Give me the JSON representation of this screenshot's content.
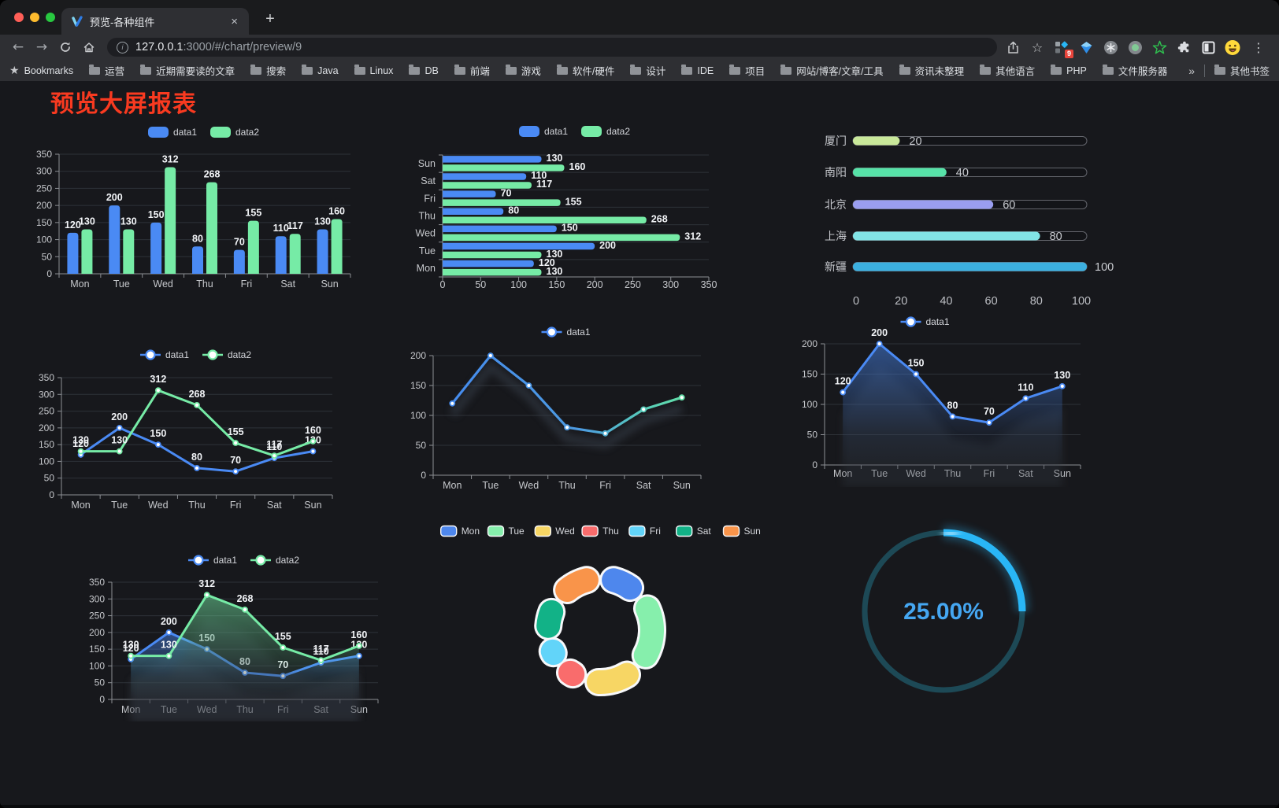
{
  "browser": {
    "traffic_lights": [
      "#FF5F57",
      "#FEBC2E",
      "#28C840"
    ],
    "tab_title": "预览-各种组件",
    "close_label": "×",
    "new_tab_label": "+",
    "nav_icons": [
      "back-arrow-icon",
      "forward-arrow-icon",
      "reload-icon",
      "home-icon"
    ],
    "url_host": "127.0.0.1",
    "url_path": ":3000/#/chart/preview/9",
    "action_icons": [
      "share-icon",
      "bookmark-star-icon"
    ],
    "extension_icons": [
      "grid-diamond-extension-icon",
      "gem-extension-icon",
      "asterisk-extension-icon",
      "recorder-extension-icon",
      "star-extension-icon",
      "puzzle-extensions-icon",
      "reader-mode-extension-icon",
      "profile-avatar"
    ],
    "extension_badge": "9",
    "menu_icon": "menu-dots-icon",
    "bookmarks_label": "Bookmarks",
    "bookmark_folders": [
      "运营",
      "近期需要读的文章",
      "搜索",
      "Java",
      "Linux",
      "DB",
      "前端",
      "游戏",
      "软件/硬件",
      "设计",
      "IDE",
      "项目",
      "网站/博客/文章/工具",
      "资讯未整理",
      "其他语言",
      "PHP",
      "文件服务器"
    ],
    "bookmarks_overflow": "»",
    "other_bookmarks": "其他书签"
  },
  "page": {
    "title": "预览大屏报表",
    "title_color": "#F93A20"
  },
  "chart_data": [
    {
      "id": "bar-grouped",
      "type": "bar",
      "categories": [
        "Mon",
        "Tue",
        "Wed",
        "Thu",
        "Fri",
        "Sat",
        "Sun"
      ],
      "series": [
        {
          "name": "data1",
          "color": "#4A8AF4",
          "values": [
            120,
            200,
            150,
            80,
            70,
            110,
            130
          ]
        },
        {
          "name": "data2",
          "color": "#76EBA6",
          "values": [
            130,
            130,
            312,
            268,
            155,
            117,
            160
          ]
        }
      ],
      "ylim": [
        0,
        350
      ],
      "ytick_step": 50,
      "grid": true,
      "labels": true,
      "legend_position": "top"
    },
    {
      "id": "bar-horizontal",
      "type": "bar-horizontal",
      "categories": [
        "Mon",
        "Tue",
        "Wed",
        "Thu",
        "Fri",
        "Sat",
        "Sun"
      ],
      "y_axis_order_top_to_bottom": [
        "Sun",
        "Sat",
        "Fri",
        "Thu",
        "Wed",
        "Tue",
        "Mon"
      ],
      "series": [
        {
          "name": "data1",
          "color": "#4A8AF4",
          "values": [
            120,
            200,
            150,
            80,
            70,
            110,
            130
          ]
        },
        {
          "name": "data2",
          "color": "#76EBA6",
          "values": [
            130,
            130,
            312,
            268,
            155,
            117,
            160
          ]
        }
      ],
      "xlim": [
        0,
        350
      ],
      "xtick_step": 50,
      "grid": true,
      "labels": true,
      "legend_position": "top"
    },
    {
      "id": "progress-bars",
      "type": "progress",
      "rows": [
        {
          "label": "厦门",
          "value": 20,
          "color": "#C9E89A"
        },
        {
          "label": "南阳",
          "value": 40,
          "color": "#57E2A8"
        },
        {
          "label": "北京",
          "value": 60,
          "color": "#9A9EF0"
        },
        {
          "label": "上海",
          "value": 80,
          "color": "#82E4E6"
        },
        {
          "label": "新疆",
          "value": 100,
          "color": "#3CB0E0"
        }
      ],
      "xlim": [
        0,
        100
      ],
      "xticks": [
        0,
        20,
        40,
        60,
        80,
        100
      ]
    },
    {
      "id": "line-multi",
      "type": "line",
      "categories": [
        "Mon",
        "Tue",
        "Wed",
        "Thu",
        "Fri",
        "Sat",
        "Sun"
      ],
      "series": [
        {
          "name": "data1",
          "color": "#4A8AF4",
          "values": [
            120,
            200,
            150,
            80,
            70,
            110,
            130
          ]
        },
        {
          "name": "data2",
          "color": "#76EBA6",
          "values": [
            130,
            130,
            312,
            268,
            155,
            117,
            160
          ]
        }
      ],
      "ylim": [
        0,
        350
      ],
      "ytick_step": 50,
      "grid": true,
      "labels": true,
      "legend_position": "top"
    },
    {
      "id": "line-gradient",
      "type": "line-gradient",
      "categories": [
        "Mon",
        "Tue",
        "Wed",
        "Thu",
        "Fri",
        "Sat",
        "Sun"
      ],
      "series": [
        {
          "name": "data1",
          "gradient": [
            "#4489F0",
            "#4D9BE0",
            "#57CBBB",
            "#66E69E"
          ],
          "values": [
            120,
            200,
            150,
            80,
            70,
            110,
            130
          ]
        }
      ],
      "ylim": [
        0,
        200
      ],
      "ytick_step": 50,
      "grid": true,
      "labels": false,
      "legend_position": "top"
    },
    {
      "id": "area-single",
      "type": "line-area",
      "categories": [
        "Mon",
        "Tue",
        "Wed",
        "Thu",
        "Fri",
        "Sat",
        "Sun"
      ],
      "series": [
        {
          "name": "data1",
          "color": "#4A8AF4",
          "values": [
            120,
            200,
            150,
            80,
            70,
            110,
            130
          ]
        }
      ],
      "ylim": [
        0,
        200
      ],
      "ytick_step": 50,
      "grid": true,
      "labels": true,
      "legend_position": "top"
    },
    {
      "id": "area-multi",
      "type": "line-area",
      "categories": [
        "Mon",
        "Tue",
        "Wed",
        "Thu",
        "Fri",
        "Sat",
        "Sun"
      ],
      "series": [
        {
          "name": "data1",
          "color": "#4A8AF4",
          "values": [
            120,
            200,
            150,
            80,
            70,
            110,
            130
          ]
        },
        {
          "name": "data2",
          "color": "#76EBA6",
          "values": [
            130,
            130,
            312,
            268,
            155,
            117,
            160
          ]
        }
      ],
      "ylim": [
        0,
        350
      ],
      "ytick_step": 50,
      "grid": true,
      "labels": true,
      "legend_position": "top"
    },
    {
      "id": "donut",
      "type": "pie",
      "items": [
        {
          "label": "Mon",
          "value": 120,
          "color": "#4E87ED"
        },
        {
          "label": "Tue",
          "value": 200,
          "color": "#86EFAC"
        },
        {
          "label": "Wed",
          "value": 150,
          "color": "#F7D664"
        },
        {
          "label": "Thu",
          "value": 80,
          "color": "#F96C6C"
        },
        {
          "label": "Fri",
          "value": 70,
          "color": "#62D4F9"
        },
        {
          "label": "Sat",
          "value": 110,
          "color": "#12B287"
        },
        {
          "label": "Sun",
          "value": 130,
          "color": "#F9944A"
        }
      ],
      "legend_position": "top",
      "inner_radius_ratio": 0.61,
      "border_color": "#F7F8FA"
    },
    {
      "id": "gauge",
      "type": "gauge",
      "percent": 25,
      "value_label": "25.00%",
      "color": "#29B6F6",
      "track_color": "#1D4956",
      "text_color": "#45A7F2"
    }
  ]
}
